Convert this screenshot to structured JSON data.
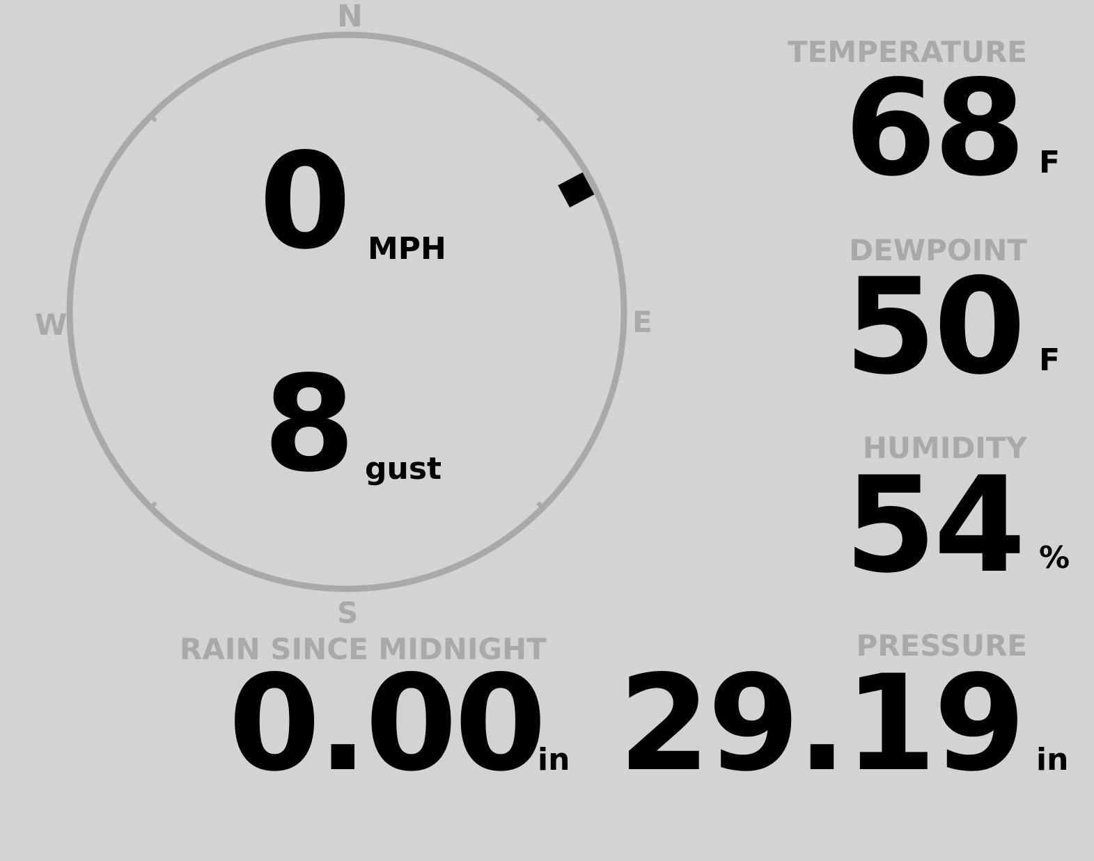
{
  "wind": {
    "speed": "0",
    "speed_unit": "MPH",
    "gust": "8",
    "gust_label": "gust",
    "direction_degrees": 62,
    "compass": {
      "n": "N",
      "e": "E",
      "s": "S",
      "w": "W"
    }
  },
  "temperature": {
    "label": "TEMPERATURE",
    "value": "68",
    "unit": "F"
  },
  "dewpoint": {
    "label": "DEWPOINT",
    "value": "50",
    "unit": "F"
  },
  "humidity": {
    "label": "HUMIDITY",
    "value": "54",
    "unit": "%"
  },
  "rain": {
    "label": "RAIN SINCE MIDNIGHT",
    "value": "0.00",
    "unit": "in"
  },
  "pressure": {
    "label": "PRESSURE",
    "value": "29.19",
    "unit": "in"
  },
  "colors": {
    "background": "#d3d3d3",
    "label": "#a9a9a9",
    "value": "#000000"
  }
}
